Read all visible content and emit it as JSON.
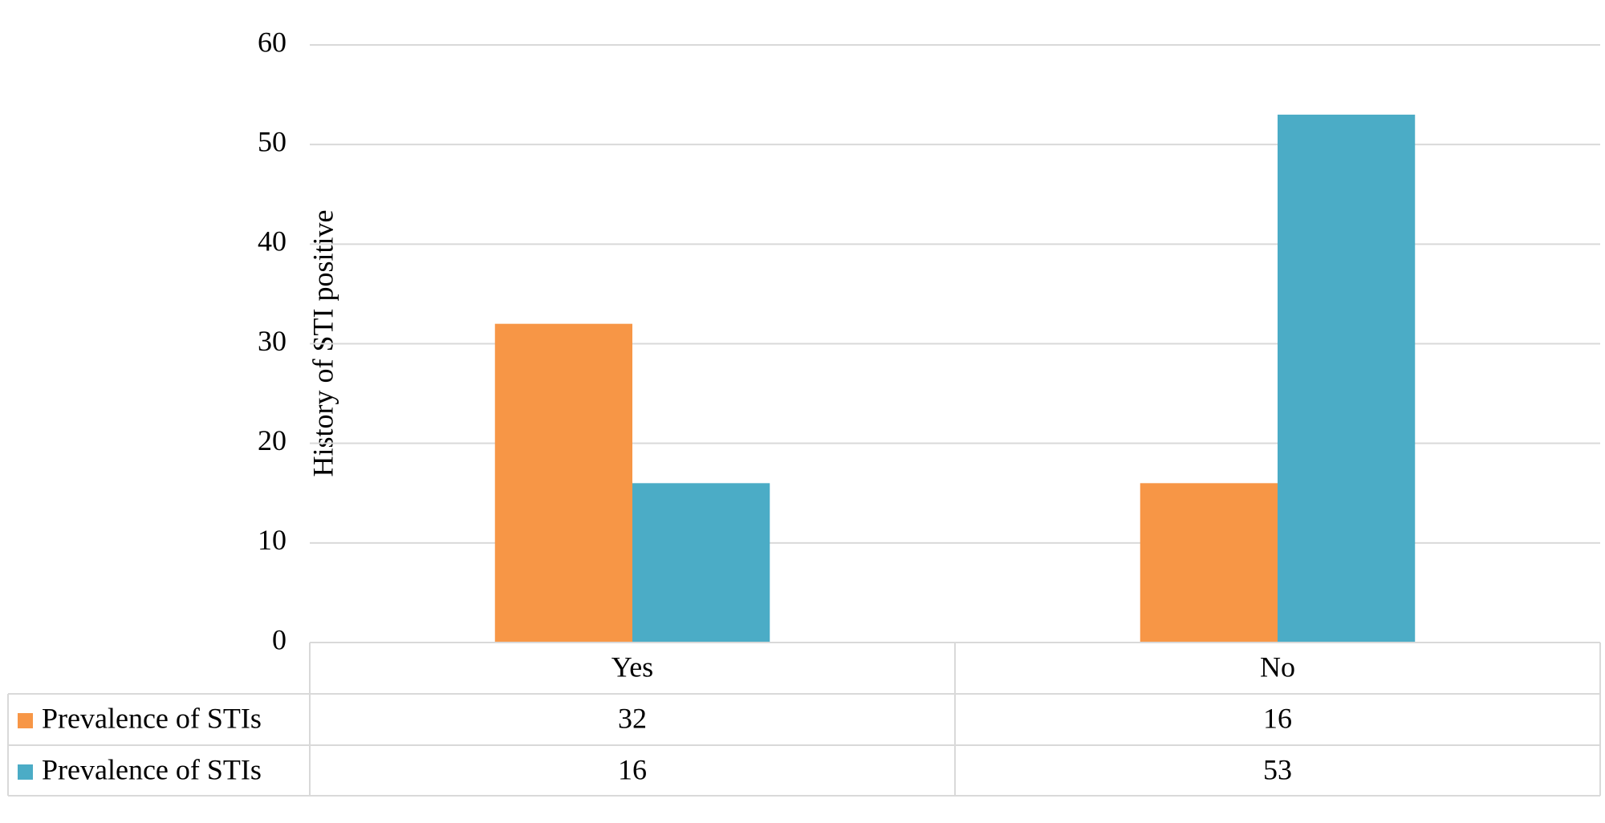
{
  "chart_data": {
    "type": "bar",
    "y_label": "History of STI positive",
    "categories": [
      "Yes",
      "No"
    ],
    "series": [
      {
        "name": "Prevalence of STIs",
        "color": "#f79646",
        "values": [
          32,
          16
        ]
      },
      {
        "name": "Prevalence of STIs",
        "color": "#4bacc6",
        "values": [
          16,
          53
        ]
      }
    ],
    "ylim": [
      0,
      60
    ],
    "yticks": [
      0,
      10,
      20,
      30,
      40,
      50,
      60
    ],
    "grid": true,
    "data_table": true
  }
}
